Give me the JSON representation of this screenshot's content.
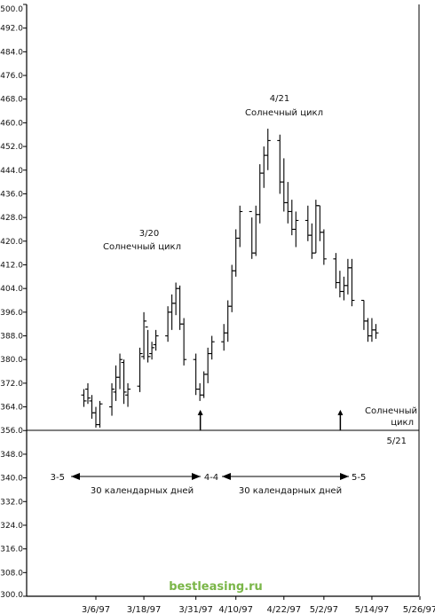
{
  "chart_data": {
    "type": "bar",
    "subtype": "ohlc",
    "y_tick_labels": [
      "300.0",
      "308.0",
      "316.0",
      "324.0",
      "332.0",
      "340.0",
      "348.0",
      "356.0",
      "364.0",
      "372.0",
      "380.0",
      "388.0",
      "396.0",
      "404.0",
      "412.0",
      "420.0",
      "428.0",
      "436.0",
      "444.0",
      "452.0",
      "460.0",
      "468.0",
      "476.0",
      "484.0",
      "492.0",
      "500.0"
    ],
    "ylim": [
      300,
      500
    ],
    "x_tick_labels": [
      "3/6/97",
      "3/18/97",
      "3/31/97",
      "4/10/97",
      "4/22/97",
      "5/2/97",
      "5/14/97",
      "5/26/97"
    ],
    "grid": false,
    "bars": [
      {
        "date": "3/3/97",
        "high": 370,
        "low": 364,
        "open": 368,
        "close": 366
      },
      {
        "date": "3/4/97",
        "high": 372,
        "low": 365,
        "open": 370,
        "close": 367
      },
      {
        "date": "3/5/97",
        "high": 368,
        "low": 360,
        "open": 366,
        "close": 362
      },
      {
        "date": "3/6/97",
        "high": 364,
        "low": 357,
        "open": 362,
        "close": 358
      },
      {
        "date": "3/7/97",
        "high": 366,
        "low": 357,
        "open": 358,
        "close": 365
      },
      {
        "date": "3/10/97",
        "high": 372,
        "low": 361,
        "open": 364,
        "close": 370
      },
      {
        "date": "3/11/97",
        "high": 378,
        "low": 366,
        "open": 369,
        "close": 374
      },
      {
        "date": "3/12/97",
        "high": 382,
        "low": 370,
        "open": 374,
        "close": 380
      },
      {
        "date": "3/13/97",
        "high": 380,
        "low": 365,
        "open": 379,
        "close": 369
      },
      {
        "date": "3/14/97",
        "high": 372,
        "low": 364,
        "open": 368,
        "close": 370
      },
      {
        "date": "3/17/97",
        "high": 384,
        "low": 369,
        "open": 371,
        "close": 382
      },
      {
        "date": "3/18/97",
        "high": 396,
        "low": 380,
        "open": 381,
        "close": 393
      },
      {
        "date": "3/19/97",
        "high": 390,
        "low": 379,
        "open": 391,
        "close": 381
      },
      {
        "date": "3/20/97",
        "high": 386,
        "low": 380,
        "open": 382,
        "close": 384
      },
      {
        "date": "3/21/97",
        "high": 390,
        "low": 383,
        "open": 385,
        "close": 388
      },
      {
        "date": "3/24/97",
        "high": 398,
        "low": 386,
        "open": 388,
        "close": 396
      },
      {
        "date": "3/25/97",
        "high": 402,
        "low": 390,
        "open": 396,
        "close": 399
      },
      {
        "date": "3/26/97",
        "high": 406,
        "low": 395,
        "open": 399,
        "close": 404
      },
      {
        "date": "3/27/97",
        "high": 405,
        "low": 390,
        "open": 404,
        "close": 392
      },
      {
        "date": "3/28/97",
        "high": 394,
        "low": 378,
        "open": 392,
        "close": 380
      },
      {
        "date": "3/31/97",
        "high": 382,
        "low": 368,
        "open": 380,
        "close": 370
      },
      {
        "date": "4/1/97",
        "high": 372,
        "low": 366,
        "open": 370,
        "close": 368
      },
      {
        "date": "4/2/97",
        "high": 376,
        "low": 367,
        "open": 368,
        "close": 375
      },
      {
        "date": "4/3/97",
        "high": 384,
        "low": 372,
        "open": 375,
        "close": 382
      },
      {
        "date": "4/4/97",
        "high": 388,
        "low": 380,
        "open": 382,
        "close": 386
      },
      {
        "date": "4/7/97",
        "high": 392,
        "low": 383,
        "open": 386,
        "close": 389
      },
      {
        "date": "4/8/97",
        "high": 400,
        "low": 386,
        "open": 389,
        "close": 398
      },
      {
        "date": "4/9/97",
        "high": 412,
        "low": 396,
        "open": 398,
        "close": 410
      },
      {
        "date": "4/10/97",
        "high": 424,
        "low": 408,
        "open": 410,
        "close": 421
      },
      {
        "date": "4/11/97",
        "high": 432,
        "low": 418,
        "open": 421,
        "close": 430
      },
      {
        "date": "4/14/97",
        "high": 428,
        "low": 414,
        "open": 430,
        "close": 416
      },
      {
        "date": "4/15/97",
        "high": 432,
        "low": 415,
        "open": 416,
        "close": 429
      },
      {
        "date": "4/16/97",
        "high": 446,
        "low": 426,
        "open": 429,
        "close": 443
      },
      {
        "date": "4/17/97",
        "high": 452,
        "low": 438,
        "open": 443,
        "close": 449
      },
      {
        "date": "4/18/97",
        "high": 458,
        "low": 444,
        "open": 449,
        "close": 454
      },
      {
        "date": "4/21/97",
        "high": 456,
        "low": 436,
        "open": 454,
        "close": 440
      },
      {
        "date": "4/22/97",
        "high": 448,
        "low": 430,
        "open": 440,
        "close": 433
      },
      {
        "date": "4/23/97",
        "high": 440,
        "low": 426,
        "open": 433,
        "close": 430
      },
      {
        "date": "4/24/97",
        "high": 434,
        "low": 422,
        "open": 430,
        "close": 424
      },
      {
        "date": "4/25/97",
        "high": 430,
        "low": 418,
        "open": 424,
        "close": 427
      },
      {
        "date": "4/28/97",
        "high": 432,
        "low": 420,
        "open": 427,
        "close": 422
      },
      {
        "date": "4/29/97",
        "high": 426,
        "low": 414,
        "open": 422,
        "close": 416
      },
      {
        "date": "4/30/97",
        "high": 434,
        "low": 416,
        "open": 416,
        "close": 432
      },
      {
        "date": "5/1/97",
        "high": 432,
        "low": 420,
        "open": 432,
        "close": 423
      },
      {
        "date": "5/2/97",
        "high": 424,
        "low": 412,
        "open": 423,
        "close": 414
      },
      {
        "date": "5/5/97",
        "high": 416,
        "low": 404,
        "open": 414,
        "close": 406
      },
      {
        "date": "5/6/97",
        "high": 410,
        "low": 401,
        "open": 406,
        "close": 403
      },
      {
        "date": "5/7/97",
        "high": 408,
        "low": 400,
        "open": 403,
        "close": 405
      },
      {
        "date": "5/8/97",
        "high": 414,
        "low": 402,
        "open": 405,
        "close": 411
      },
      {
        "date": "5/9/97",
        "high": 414,
        "low": 398,
        "open": 411,
        "close": 400
      },
      {
        "date": "5/12/97",
        "high": 400,
        "low": 390,
        "open": 400,
        "close": 393
      },
      {
        "date": "5/13/97",
        "high": 394,
        "low": 386,
        "open": 393,
        "close": 388
      },
      {
        "date": "5/14/97",
        "high": 394,
        "low": 386,
        "open": 388,
        "close": 390
      },
      {
        "date": "5/15/97",
        "high": 392,
        "low": 387,
        "open": 390,
        "close": 389
      }
    ],
    "reference_line": 356,
    "arrows": [
      {
        "date": "3/31/97",
        "tip": 363,
        "base": 356
      },
      {
        "date": "5/5/97",
        "tip": 363,
        "base": 356
      }
    ],
    "annotations": {
      "cycle1_date": "3/20",
      "cycle1_label": "Солнечный цикл",
      "cycle2_date": "4/21",
      "cycle2_label": "Солнечный цикл",
      "cycle3_label_line1": "Солнечный",
      "cycle3_label_line2": "цикл",
      "cycle3_date": "5/21",
      "marker_left": "3-5",
      "marker_mid": "4-4",
      "marker_right": "5-5",
      "span1_label": "30 календарных дней",
      "span2_label": "30 календарных дней"
    },
    "watermark": "bestleasing.ru"
  }
}
